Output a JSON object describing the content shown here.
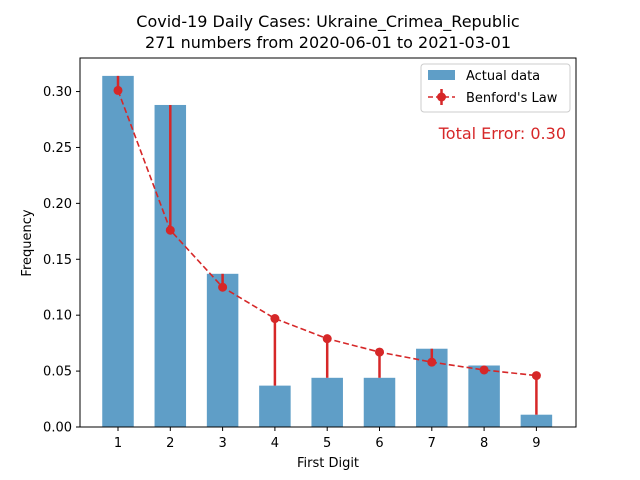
{
  "chart_data": {
    "type": "bar",
    "title": "Covid-19 Daily Cases: Ukraine_Crimea_Republic",
    "subtitle": "271 numbers from 2020-06-01 to 2021-03-01",
    "xlabel": "First Digit",
    "ylabel": "Frequency",
    "categories": [
      "1",
      "2",
      "3",
      "4",
      "5",
      "6",
      "7",
      "8",
      "9"
    ],
    "ylim": [
      0,
      0.33
    ],
    "yticks": [
      "0.00",
      "0.05",
      "0.10",
      "0.15",
      "0.20",
      "0.25",
      "0.30"
    ],
    "series": [
      {
        "name": "Actual data",
        "kind": "bar",
        "color": "#5f9ec7",
        "values": [
          0.314,
          0.288,
          0.137,
          0.037,
          0.044,
          0.044,
          0.07,
          0.055,
          0.011
        ]
      },
      {
        "name": "Benford's Law",
        "kind": "line-errorbar",
        "color": "#d62728",
        "values": [
          0.301,
          0.176,
          0.125,
          0.097,
          0.079,
          0.067,
          0.058,
          0.051,
          0.046
        ]
      }
    ],
    "annotation": "Total Error: 0.30",
    "legend_position": "top-right",
    "grid": false
  }
}
